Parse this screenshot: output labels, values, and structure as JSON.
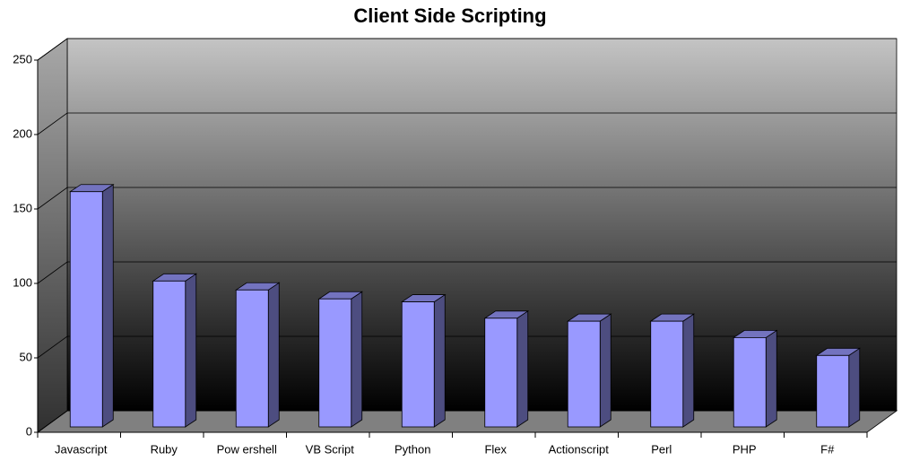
{
  "chart_data": {
    "type": "bar3d",
    "title": "Client Side Scripting",
    "categories": [
      "Javascript",
      "Ruby",
      "Pow ershell",
      "VB Script",
      "Python",
      "Flex",
      "Actionscript",
      "Perl",
      "PHP",
      "F#"
    ],
    "values": [
      158,
      98,
      92,
      86,
      84,
      73,
      71,
      71,
      60,
      48
    ],
    "color": "#9999ff",
    "ylim": [
      0,
      250
    ],
    "yticks": [
      0,
      50,
      100,
      150,
      200,
      250
    ],
    "grid": true
  }
}
